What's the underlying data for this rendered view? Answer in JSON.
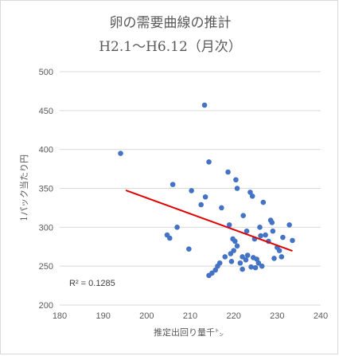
{
  "chart_data": {
    "type": "scatter",
    "title": "卵の需要曲線の推計",
    "subtitle": "H2.1～H6.12（月次）",
    "xlabel": "推定出回り量千㌧",
    "ylabel": "1パック当たり円",
    "xlim": [
      180,
      240
    ],
    "ylim": [
      200,
      500
    ],
    "x_ticks": [
      "180",
      "190",
      "200",
      "210",
      "220",
      "230",
      "240"
    ],
    "y_ticks": [
      "200",
      "250",
      "300",
      "350",
      "400",
      "450",
      "500"
    ],
    "grid": "horizontal",
    "colors": {
      "points": "#4472c4",
      "trendline": "#e00000",
      "grid": "#d9d9d9"
    },
    "r2_label": "R² = 0.1285",
    "trendline": {
      "x": [
        195.2,
        233.5
      ],
      "y": [
        347.5,
        269.5
      ]
    },
    "points": [
      {
        "x": 194,
        "y": 395
      },
      {
        "x": 204.7,
        "y": 290
      },
      {
        "x": 205.3,
        "y": 286
      },
      {
        "x": 206,
        "y": 355
      },
      {
        "x": 207,
        "y": 300
      },
      {
        "x": 209.7,
        "y": 272
      },
      {
        "x": 210.3,
        "y": 347
      },
      {
        "x": 212.5,
        "y": 329
      },
      {
        "x": 213.3,
        "y": 457
      },
      {
        "x": 213.5,
        "y": 339
      },
      {
        "x": 214.3,
        "y": 384
      },
      {
        "x": 214.3,
        "y": 238
      },
      {
        "x": 215,
        "y": 241
      },
      {
        "x": 215.8,
        "y": 245
      },
      {
        "x": 216.3,
        "y": 250
      },
      {
        "x": 216.8,
        "y": 254
      },
      {
        "x": 217.2,
        "y": 325
      },
      {
        "x": 218,
        "y": 262
      },
      {
        "x": 218.7,
        "y": 371
      },
      {
        "x": 219,
        "y": 303
      },
      {
        "x": 219.3,
        "y": 266
      },
      {
        "x": 219.5,
        "y": 256
      },
      {
        "x": 219.8,
        "y": 285
      },
      {
        "x": 220,
        "y": 270
      },
      {
        "x": 220.3,
        "y": 282
      },
      {
        "x": 220.5,
        "y": 361
      },
      {
        "x": 220.8,
        "y": 350
      },
      {
        "x": 220.8,
        "y": 276
      },
      {
        "x": 221.5,
        "y": 254
      },
      {
        "x": 222,
        "y": 262
      },
      {
        "x": 222,
        "y": 246
      },
      {
        "x": 222.2,
        "y": 315
      },
      {
        "x": 222.8,
        "y": 258
      },
      {
        "x": 223,
        "y": 295
      },
      {
        "x": 223.2,
        "y": 264
      },
      {
        "x": 223.8,
        "y": 345
      },
      {
        "x": 224,
        "y": 249
      },
      {
        "x": 224.3,
        "y": 340
      },
      {
        "x": 224.5,
        "y": 261
      },
      {
        "x": 224.8,
        "y": 285
      },
      {
        "x": 225,
        "y": 248
      },
      {
        "x": 225.3,
        "y": 259
      },
      {
        "x": 225.7,
        "y": 254
      },
      {
        "x": 226,
        "y": 300
      },
      {
        "x": 226.2,
        "y": 289
      },
      {
        "x": 226.5,
        "y": 250
      },
      {
        "x": 226.8,
        "y": 332
      },
      {
        "x": 227.3,
        "y": 290
      },
      {
        "x": 228,
        "y": 282
      },
      {
        "x": 228.5,
        "y": 309
      },
      {
        "x": 228.8,
        "y": 306
      },
      {
        "x": 229,
        "y": 295
      },
      {
        "x": 229.3,
        "y": 260
      },
      {
        "x": 230,
        "y": 274
      },
      {
        "x": 230.5,
        "y": 270
      },
      {
        "x": 231,
        "y": 262
      },
      {
        "x": 231.3,
        "y": 287
      },
      {
        "x": 232.8,
        "y": 303
      },
      {
        "x": 233.5,
        "y": 283
      }
    ]
  }
}
